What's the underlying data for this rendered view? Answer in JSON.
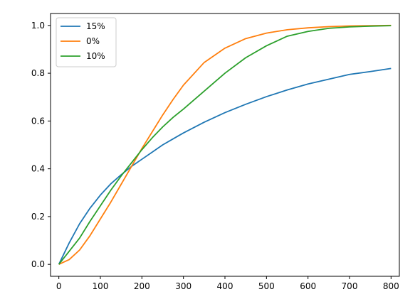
{
  "chart_data": {
    "type": "line",
    "title": "",
    "xlabel": "",
    "ylabel": "",
    "xlim": [
      -20,
      820
    ],
    "ylim": [
      -0.05,
      1.05
    ],
    "xticks": [
      0,
      100,
      200,
      300,
      400,
      500,
      600,
      700,
      800
    ],
    "yticks": [
      0.0,
      0.2,
      0.4,
      0.6,
      0.8,
      1.0
    ],
    "xtick_labels": [
      "0",
      "100",
      "200",
      "300",
      "400",
      "500",
      "600",
      "700",
      "800"
    ],
    "ytick_labels": [
      "0.0",
      "0.2",
      "0.4",
      "0.6",
      "0.8",
      "1.0"
    ],
    "grid": false,
    "legend_position": "top-left",
    "x": [
      0,
      25,
      50,
      75,
      100,
      125,
      150,
      175,
      200,
      225,
      250,
      275,
      300,
      350,
      400,
      450,
      500,
      550,
      600,
      650,
      700,
      750,
      800
    ],
    "series": [
      {
        "name": "15%",
        "color": "#1f77b4",
        "values": [
          0.0,
          0.09,
          0.17,
          0.235,
          0.29,
          0.337,
          0.375,
          0.41,
          0.44,
          0.47,
          0.5,
          0.525,
          0.55,
          0.595,
          0.635,
          0.67,
          0.702,
          0.73,
          0.755,
          0.775,
          0.795,
          0.807,
          0.82
        ]
      },
      {
        "name": "0%",
        "color": "#ff7f0e",
        "values": [
          0.0,
          0.02,
          0.06,
          0.12,
          0.19,
          0.26,
          0.335,
          0.41,
          0.485,
          0.555,
          0.625,
          0.69,
          0.75,
          0.845,
          0.905,
          0.945,
          0.968,
          0.982,
          0.99,
          0.995,
          0.998,
          0.999,
          1.0
        ]
      },
      {
        "name": "10%",
        "color": "#2ca02c",
        "values": [
          0.0,
          0.055,
          0.11,
          0.18,
          0.245,
          0.31,
          0.37,
          0.425,
          0.48,
          0.53,
          0.575,
          0.615,
          0.65,
          0.725,
          0.8,
          0.865,
          0.915,
          0.955,
          0.975,
          0.988,
          0.994,
          0.997,
          0.999
        ]
      }
    ]
  }
}
